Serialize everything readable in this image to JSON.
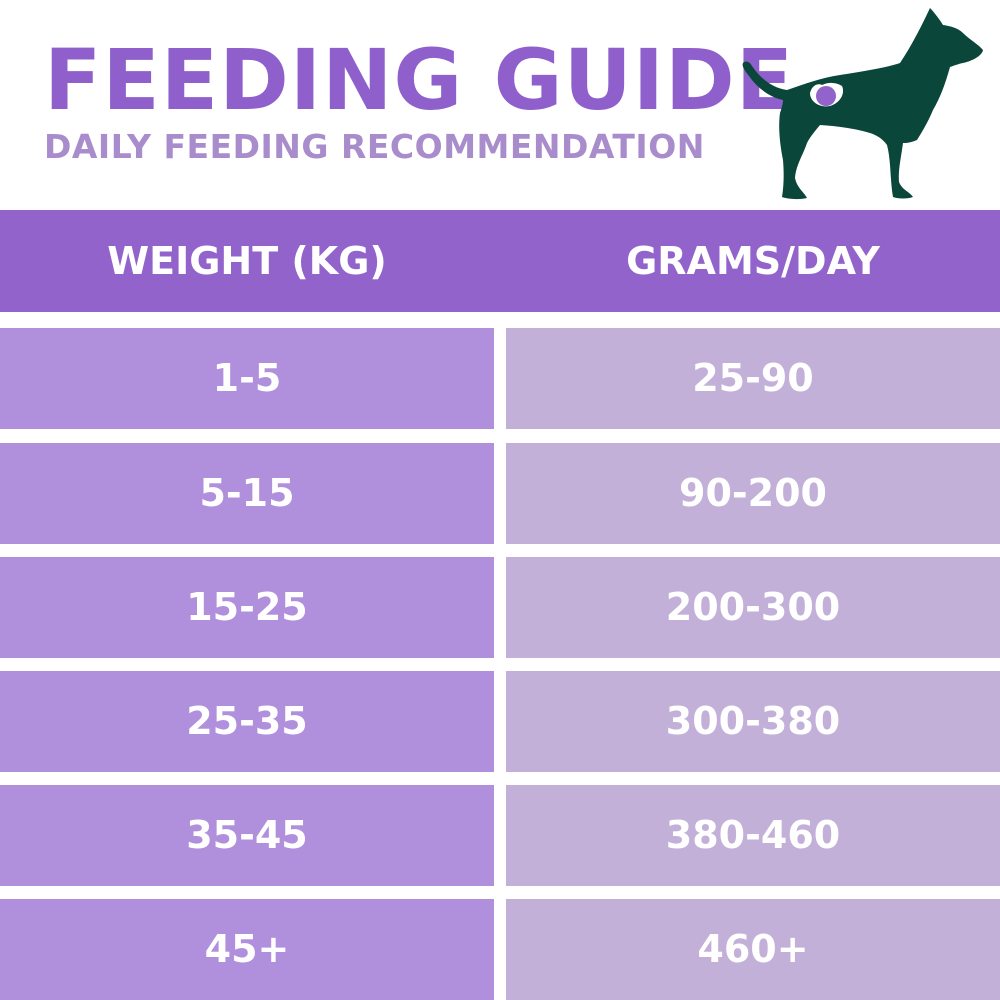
{
  "header": {
    "title": "FEEDING GUIDE",
    "subtitle": "DAILY FEEDING RECOMMENDATION",
    "icon": "dog-silhouette-icon"
  },
  "colors": {
    "header_band": "#9163cb",
    "title": "#8f5fcc",
    "subtitle": "#a98ccb",
    "weight_cell": "#b08fdc",
    "grams_cell": "#c2b0d8",
    "dog": "#0a473a"
  },
  "table": {
    "columns": [
      "WEIGHT (KG)",
      "GRAMS/DAY"
    ],
    "rows": [
      [
        "1-5",
        "25-90"
      ],
      [
        "5-15",
        "90-200"
      ],
      [
        "15-25",
        "200-300"
      ],
      [
        "25-35",
        "300-380"
      ],
      [
        "35-45",
        "380-460"
      ],
      [
        "45+",
        "460+"
      ]
    ]
  }
}
